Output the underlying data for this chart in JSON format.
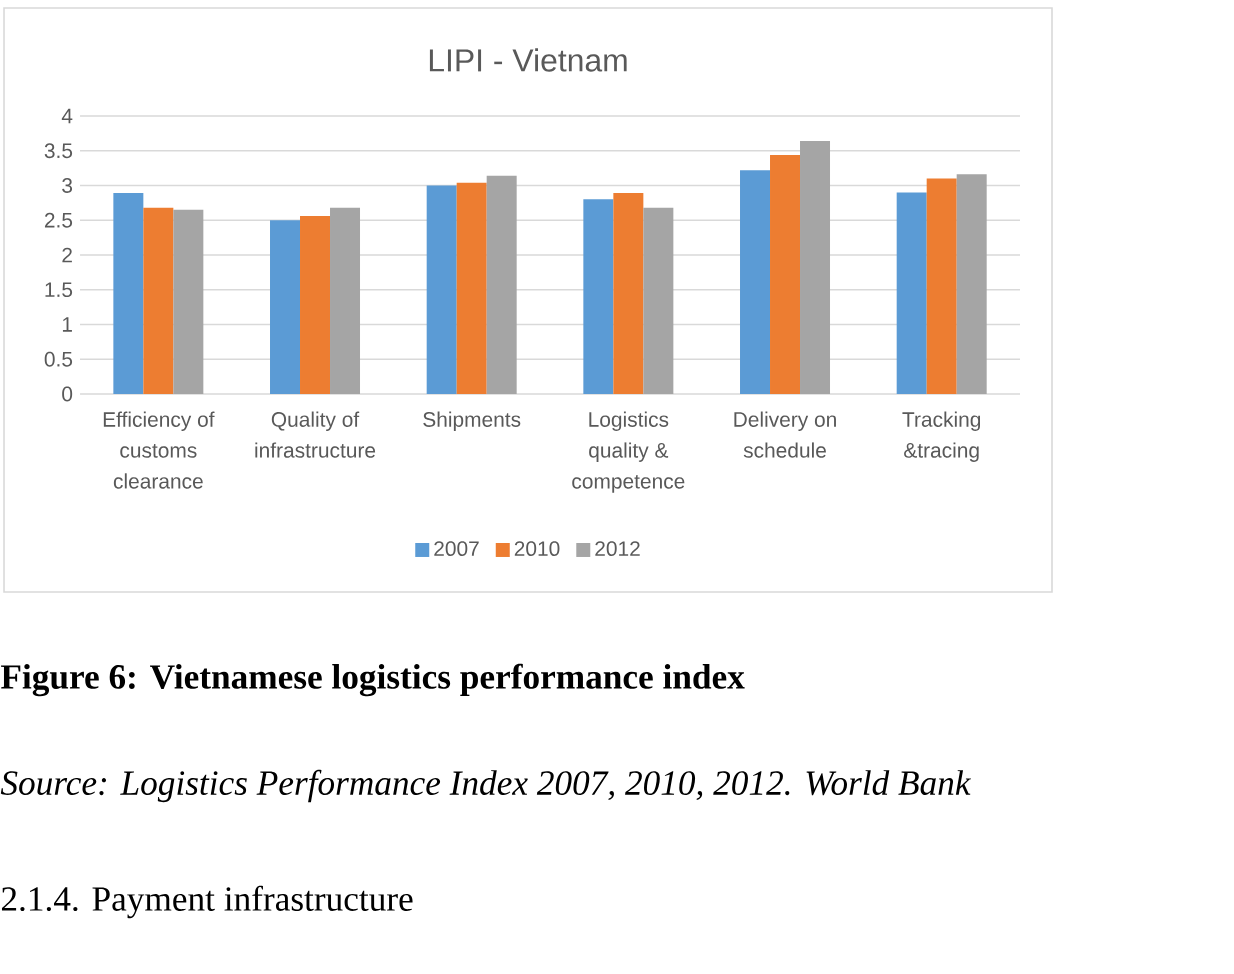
{
  "chart_data": {
    "type": "bar",
    "title": "LIPI - Vietnam",
    "categories": [
      "Efficiency of customs clearance",
      "Quality of infrastructure",
      "Shipments",
      "Logistics quality & competence",
      "Delivery on schedule",
      "Tracking &tracing"
    ],
    "series": [
      {
        "name": "2007",
        "color": "#5b9bd5",
        "values": [
          2.89,
          2.5,
          3.0,
          2.8,
          3.22,
          2.9
        ]
      },
      {
        "name": "2010",
        "color": "#ed7d31",
        "values": [
          2.68,
          2.56,
          3.04,
          2.89,
          3.44,
          3.1
        ]
      },
      {
        "name": "2012",
        "color": "#a5a5a5",
        "values": [
          2.65,
          2.68,
          3.14,
          2.68,
          3.64,
          3.16
        ]
      }
    ],
    "ylim": [
      0,
      4
    ],
    "yticks": [
      0,
      0.5,
      1,
      1.5,
      2,
      2.5,
      3,
      3.5,
      4
    ],
    "grid": "y",
    "legend": "bottom",
    "annotations": [
      "Figure 6: Vietnamese logistics performance index",
      "Source: Logistics Performance Index 2007, 2010, 2012. World Bank",
      "2.1.4. Payment infrastructure"
    ]
  }
}
